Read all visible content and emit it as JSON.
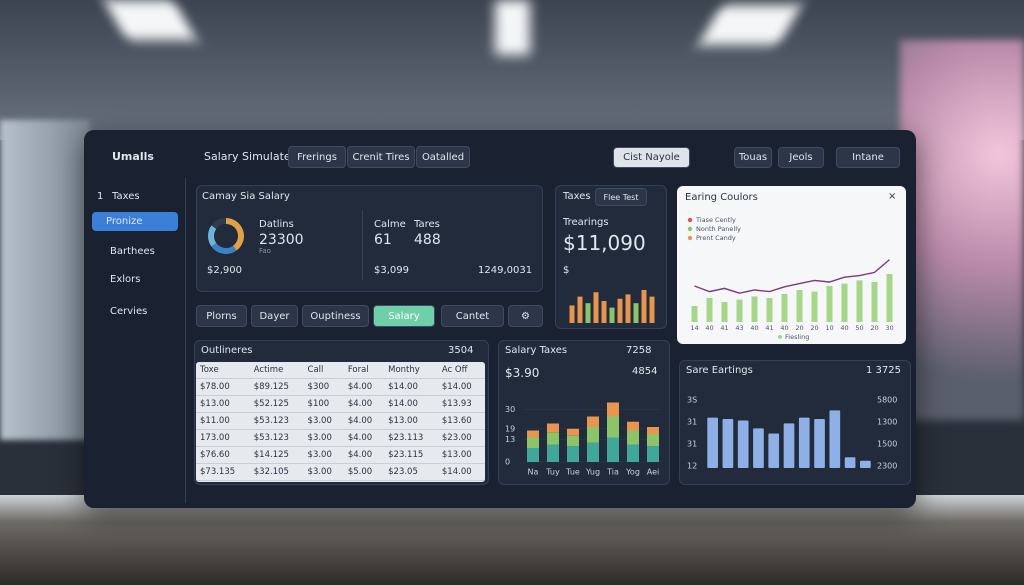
{
  "header": {
    "logo": "Umalls",
    "title": "Salary Simulater",
    "tabs": [
      "Frerings",
      "Crenit Tires",
      "Oatalled"
    ],
    "dropdown": "Cist Nayole",
    "actions": [
      "Touas",
      "Jeols",
      "Intane"
    ]
  },
  "sidebar": {
    "number": "1",
    "items": [
      "Taxes",
      "Pronize",
      "Barthees",
      "Exlors",
      "Cervies"
    ]
  },
  "salary_card": {
    "title": "Camay Sia Salary",
    "label1": "Datlins",
    "value1": "23300",
    "sub1": "Fao",
    "foot1": "$2,900",
    "label2a": "Calme",
    "label2b": "Tares",
    "value2a": "61",
    "value2b": "488",
    "foot2a": "$3,099",
    "foot2b": "1249,0031",
    "donut": {
      "values": [
        40,
        25,
        20,
        15
      ],
      "colors": [
        "#e0a04a",
        "#3b82c4",
        "#6fb3d9",
        "#2f3a4f"
      ]
    }
  },
  "taxes_card": {
    "title": "Taxes",
    "button": "Flee Test",
    "label": "Trearings",
    "value": "$11,090",
    "unit": "$",
    "bars": {
      "values": [
        40,
        60,
        45,
        70,
        50,
        35,
        55,
        65,
        45,
        75,
        60
      ],
      "colors": [
        "#e89550",
        "#e89550",
        "#8cc46a",
        "#e89550",
        "#e89550",
        "#8cc46a",
        "#e89550",
        "#e89550",
        "#8cc46a",
        "#e89550",
        "#e89550"
      ],
      "ylim": [
        0,
        100
      ]
    }
  },
  "buttons": [
    "Plorns",
    "Dayer",
    "Ouptiness",
    "Salary",
    "Cantet"
  ],
  "earning_chart": {
    "title": "Earing Coulors",
    "legend": [
      {
        "name": "Tiase Cently",
        "color": "#d9534f"
      },
      {
        "name": "Nonth Panelly",
        "color": "#8cc46a"
      },
      {
        "name": "Prent Candy",
        "color": "#e89550"
      }
    ],
    "x": [
      "14",
      "40",
      "41",
      "43",
      "40",
      "41",
      "40",
      "20",
      "20",
      "10",
      "40",
      "50",
      "20",
      "30"
    ],
    "line": {
      "color": "#7b3b7a",
      "values": [
        45,
        38,
        42,
        36,
        40,
        38,
        44,
        48,
        52,
        50,
        56,
        58,
        62,
        78
      ]
    },
    "bars": {
      "color": "#a6d68a",
      "values": [
        20,
        30,
        25,
        28,
        32,
        30,
        35,
        40,
        38,
        45,
        48,
        52,
        50,
        60
      ]
    },
    "ylim": [
      0,
      100
    ],
    "footer": "Fiesling"
  },
  "outliers_card": {
    "title": "Outlineres",
    "badge": "3504",
    "table": {
      "headers": [
        "Toxe",
        "Actime",
        "Call",
        "Foral",
        "Monthy",
        "Ac Off"
      ],
      "rows": [
        [
          "$78.00",
          "$89.125",
          "$300",
          "$4.00",
          "$14.00",
          "$14.00"
        ],
        [
          "$13.00",
          "$52.125",
          "$100",
          "$4.00",
          "$14.00",
          "$13.93"
        ],
        [
          "$11.00",
          "$53.123",
          "$3.00",
          "$4.00",
          "$13.00",
          "$13.60"
        ],
        [
          "173.00",
          "$53.123",
          "$3.00",
          "$4.00",
          "$23.113",
          "$23.00"
        ],
        [
          "$76.60",
          "$14.125",
          "$3.00",
          "$4.00",
          "$23.115",
          "$13.00"
        ],
        [
          "$73.135",
          "$32.105",
          "$3.00",
          "$5.00",
          "$23.05",
          "$14.00"
        ]
      ]
    }
  },
  "salary_taxes": {
    "title": "Salary Taxes",
    "badge": "7258",
    "value": "$3.90",
    "badge2": "4854",
    "ylim": [
      0,
      40
    ],
    "yticks": [
      0,
      13,
      19,
      30
    ],
    "categories": [
      "Na",
      "Tuy",
      "Tue",
      "Yug",
      "Tia",
      "Yog",
      "Aei"
    ],
    "series": [
      {
        "color": "#3fa89a",
        "values": [
          8,
          10,
          9,
          11,
          14,
          10,
          9
        ]
      },
      {
        "color": "#8cc46a",
        "values": [
          6,
          7,
          6,
          9,
          12,
          8,
          7
        ]
      },
      {
        "color": "#e89550",
        "values": [
          4,
          5,
          4,
          6,
          8,
          5,
          4
        ]
      }
    ]
  },
  "sare_earnings": {
    "title": "Sare Eartings",
    "badge": "1 3725",
    "left_labels": [
      "3S",
      "31",
      "31",
      "12"
    ],
    "right_labels": [
      "5800",
      "1300",
      "1500",
      "2300"
    ],
    "bars": {
      "color": "#8fb0e6",
      "values": [
        70,
        68,
        66,
        55,
        48,
        62,
        70,
        68,
        80,
        15,
        10
      ],
      "ylim": [
        0,
        100
      ]
    }
  }
}
